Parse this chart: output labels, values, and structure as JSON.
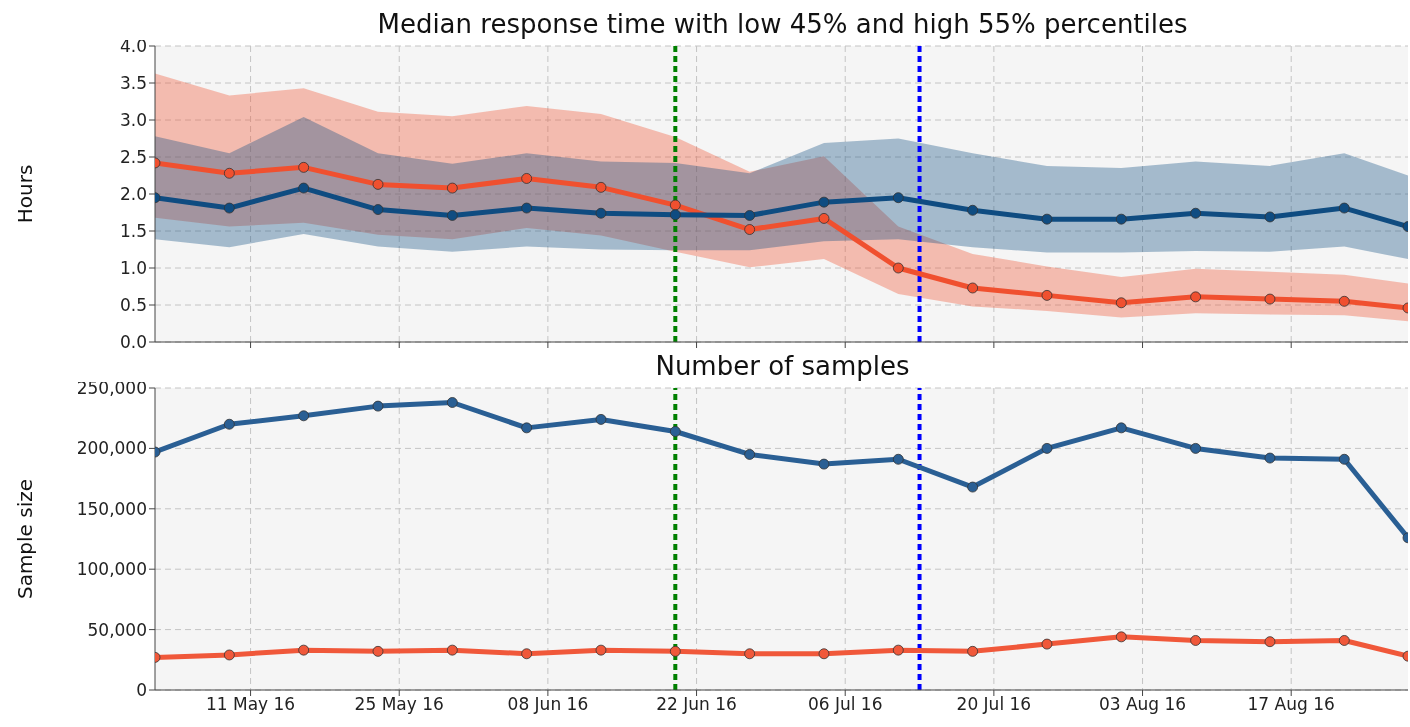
{
  "chart_data": [
    {
      "type": "line",
      "title": "Median response time with low 45% and high 55% percentiles",
      "ylabel": "Hours",
      "x": [
        "--05-02",
        "--05-09",
        "--05-16",
        "--05-23",
        "--05-30",
        "--06-06",
        "--06-13",
        "--06-20",
        "--06-27",
        "--07-04",
        "--07-11",
        "--07-18",
        "--07-25",
        "--08-01",
        "--08-08",
        "--08-15",
        "--08-22",
        "--08-28"
      ],
      "series": [
        {
          "color": "#f0502f",
          "values": [
            2.42,
            2.28,
            2.36,
            2.13,
            2.08,
            2.21,
            2.09,
            1.85,
            1.52,
            1.67,
            1.0,
            0.73,
            0.63,
            0.53,
            0.61,
            0.58,
            0.55,
            0.46
          ],
          "lower": [
            1.68,
            1.56,
            1.61,
            1.45,
            1.39,
            1.54,
            1.44,
            1.22,
            1.01,
            1.12,
            0.65,
            0.48,
            0.42,
            0.33,
            0.39,
            0.37,
            0.36,
            0.28
          ],
          "upper": [
            3.63,
            3.33,
            3.43,
            3.11,
            3.05,
            3.19,
            3.08,
            2.77,
            2.3,
            2.51,
            1.56,
            1.19,
            1.02,
            0.88,
            0.99,
            0.95,
            0.91,
            0.79
          ]
        },
        {
          "color": "#0f4c81",
          "values": [
            1.95,
            1.81,
            2.08,
            1.79,
            1.71,
            1.81,
            1.74,
            1.72,
            1.71,
            1.89,
            1.95,
            1.78,
            1.66,
            1.66,
            1.74,
            1.69,
            1.81,
            1.56
          ],
          "lower": [
            1.39,
            1.28,
            1.46,
            1.29,
            1.22,
            1.29,
            1.25,
            1.24,
            1.24,
            1.36,
            1.39,
            1.28,
            1.21,
            1.21,
            1.23,
            1.22,
            1.29,
            1.12
          ],
          "upper": [
            2.78,
            2.55,
            3.04,
            2.55,
            2.41,
            2.55,
            2.44,
            2.42,
            2.28,
            2.69,
            2.75,
            2.55,
            2.38,
            2.35,
            2.44,
            2.38,
            2.55,
            2.25
          ]
        }
      ],
      "xlim": [
        "--05-02",
        "--08-28"
      ],
      "xticks": [
        {
          "value": "--05-11",
          "label": null
        },
        {
          "value": "--05-25",
          "label": null
        },
        {
          "value": "--06-08",
          "label": null
        },
        {
          "value": "--06-22",
          "label": null
        },
        {
          "value": "--07-06",
          "label": null
        },
        {
          "value": "--07-20",
          "label": null
        },
        {
          "value": "--08-03",
          "label": null
        },
        {
          "value": "--08-17",
          "label": null
        }
      ],
      "ylim": [
        0,
        4
      ],
      "yticks": [
        {
          "value": 0,
          "label": "0.0"
        },
        {
          "value": 0.5,
          "label": "0.5"
        },
        {
          "value": 1,
          "label": "1.0"
        },
        {
          "value": 1.5,
          "label": "1.5"
        },
        {
          "value": 2,
          "label": "2.0"
        },
        {
          "value": 2.5,
          "label": "2.5"
        },
        {
          "value": 3,
          "label": "3.0"
        },
        {
          "value": 3.5,
          "label": "3.5"
        },
        {
          "value": 4,
          "label": "4.0"
        }
      ],
      "ref_lines": [
        {
          "axis": "x",
          "value": "--06-20",
          "color": "#008000",
          "line_style": "dashed"
        },
        {
          "axis": "x",
          "value": "--07-13",
          "color": "#0000ff",
          "line_style": "dashed"
        }
      ],
      "tick_labels": "y",
      "grid": true,
      "marker": "circle",
      "line_style": "solid"
    },
    {
      "type": "line",
      "title": "Number of samples",
      "ylabel": "Sample size",
      "x": [
        "--05-02",
        "--05-09",
        "--05-16",
        "--05-23",
        "--05-30",
        "--06-06",
        "--06-13",
        "--06-20",
        "--06-27",
        "--07-04",
        "--07-11",
        "--07-18",
        "--07-25",
        "--08-01",
        "--08-08",
        "--08-15",
        "--08-22",
        "--08-28"
      ],
      "series": [
        {
          "color": "#2a5f94",
          "values": [
            197000,
            220000,
            227000,
            235000,
            238000,
            217000,
            224000,
            214000,
            195000,
            187000,
            191000,
            168000,
            200000,
            217000,
            200000,
            192000,
            191000,
            126000
          ]
        },
        {
          "color": "#f0583a",
          "values": [
            27000,
            29000,
            33000,
            32000,
            33000,
            30000,
            33000,
            32000,
            30000,
            30000,
            33000,
            32000,
            38000,
            44000,
            41000,
            40000,
            41000,
            28000
          ]
        }
      ],
      "xlim": [
        "--05-02",
        "--08-28"
      ],
      "xticks": [
        {
          "value": "--05-11",
          "label": "11 May 16"
        },
        {
          "value": "--05-25",
          "label": "25 May 16"
        },
        {
          "value": "--06-08",
          "label": "08 Jun 16"
        },
        {
          "value": "--06-22",
          "label": "22 Jun 16"
        },
        {
          "value": "--07-06",
          "label": "06 Jul 16"
        },
        {
          "value": "--07-20",
          "label": "20 Jul 16"
        },
        {
          "value": "--08-03",
          "label": "03 Aug 16"
        },
        {
          "value": "--08-17",
          "label": "17 Aug 16"
        }
      ],
      "ylim": [
        0,
        250000
      ],
      "yticks": [
        0,
        {
          "value": 50000,
          "label": "50,000"
        },
        {
          "value": 100000,
          "label": "100,000"
        },
        {
          "value": 150000,
          "label": "150,000"
        },
        {
          "value": 200000,
          "label": "200,000"
        },
        {
          "value": 250000,
          "label": "250,000"
        }
      ],
      "ref_lines": [
        {
          "axis": "x",
          "value": "--06-20",
          "color": "#008000",
          "line_style": "dashed"
        },
        {
          "axis": "x",
          "value": "--07-13",
          "color": "#0000ff",
          "line_style": "dashed"
        }
      ],
      "grid": true,
      "marker": "circle",
      "line_style": "solid"
    }
  ]
}
